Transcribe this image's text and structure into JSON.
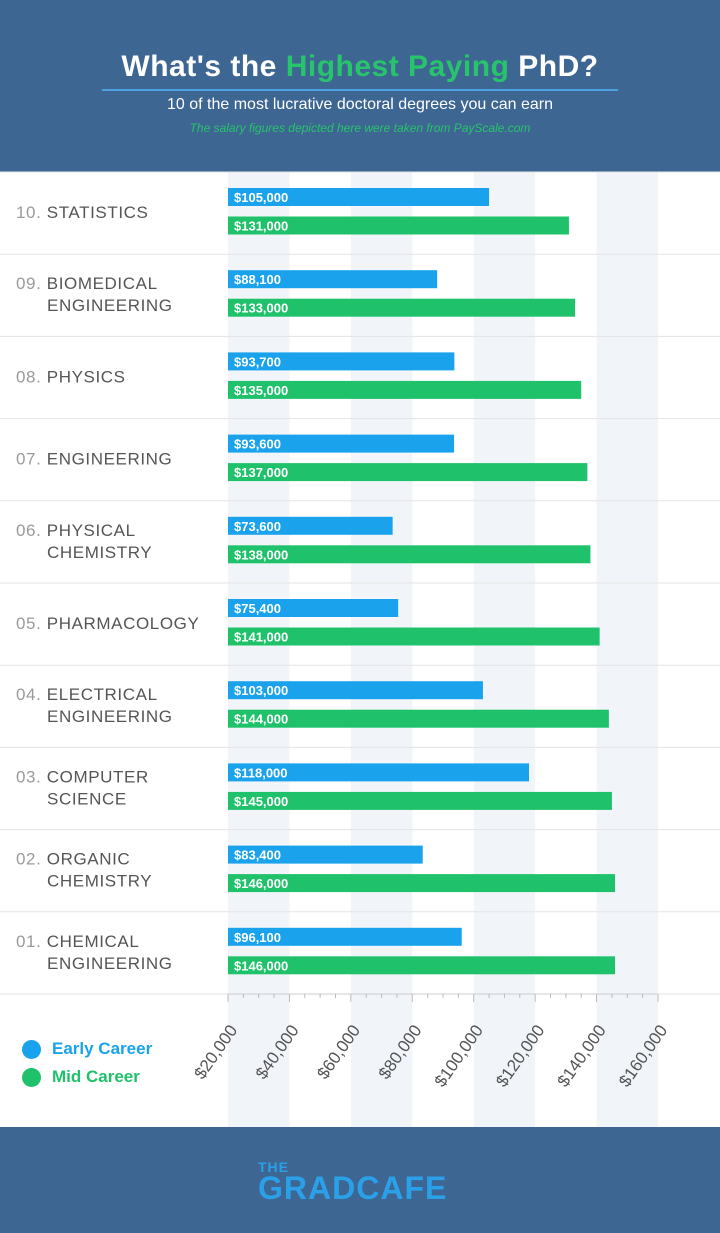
{
  "header": {
    "title_pre": "What's the ",
    "title_highlight": "Highest Paying",
    "title_post": " PhD?",
    "subtitle": "10 of the most lucrative doctoral degrees you can earn",
    "source": "The salary figures depicted here were taken from PayScale.com"
  },
  "chart_data": {
    "type": "bar",
    "orientation": "horizontal",
    "categories": [
      {
        "num": "10.",
        "lines": [
          "STATISTICS"
        ]
      },
      {
        "num": "09.",
        "lines": [
          "BIOMEDICAL",
          "ENGINEERING"
        ]
      },
      {
        "num": "08.",
        "lines": [
          "PHYSICS"
        ]
      },
      {
        "num": "07.",
        "lines": [
          "ENGINEERING"
        ]
      },
      {
        "num": "06.",
        "lines": [
          "PHYSICAL",
          "CHEMISTRY"
        ]
      },
      {
        "num": "05.",
        "lines": [
          "PHARMACOLOGY"
        ]
      },
      {
        "num": "04.",
        "lines": [
          "ELECTRICAL",
          "ENGINEERING"
        ]
      },
      {
        "num": "03.",
        "lines": [
          "COMPUTER",
          "SCIENCE"
        ]
      },
      {
        "num": "02.",
        "lines": [
          "ORGANIC",
          "CHEMISTRY"
        ]
      },
      {
        "num": "01.",
        "lines": [
          "CHEMICAL",
          "ENGINEERING"
        ]
      }
    ],
    "series": [
      {
        "name": "Early Career",
        "color": "#1aa3ec",
        "values": [
          105000,
          88100,
          93700,
          93600,
          73600,
          75400,
          103000,
          118000,
          83400,
          96100
        ],
        "labels": [
          "$105,000",
          "$88,100",
          "$93,700",
          "$93,600",
          "$73,600",
          "$75,400",
          "$103,000",
          "$118,000",
          "$83,400",
          "$96,100"
        ]
      },
      {
        "name": "Mid Career",
        "color": "#1fc26b",
        "values": [
          131000,
          133000,
          135000,
          137000,
          138000,
          141000,
          144000,
          145000,
          146000,
          146000
        ],
        "labels": [
          "$131,000",
          "$133,000",
          "$135,000",
          "$137,000",
          "$138,000",
          "$141,000",
          "$144,000",
          "$145,000",
          "$146,000",
          "$146,000"
        ]
      }
    ],
    "xlim": [
      20000,
      160000
    ],
    "ticks": [
      20000,
      40000,
      60000,
      80000,
      100000,
      120000,
      140000,
      160000
    ],
    "tick_labels": [
      "$20,000",
      "$40,000",
      "$60,000",
      "$80,000",
      "$100,000",
      "$120,000",
      "$140,000",
      "$160,000"
    ],
    "legend_position": "bottom-left"
  },
  "footer": {
    "logo_top": "THE",
    "logo_main": "GRADCAFE"
  }
}
